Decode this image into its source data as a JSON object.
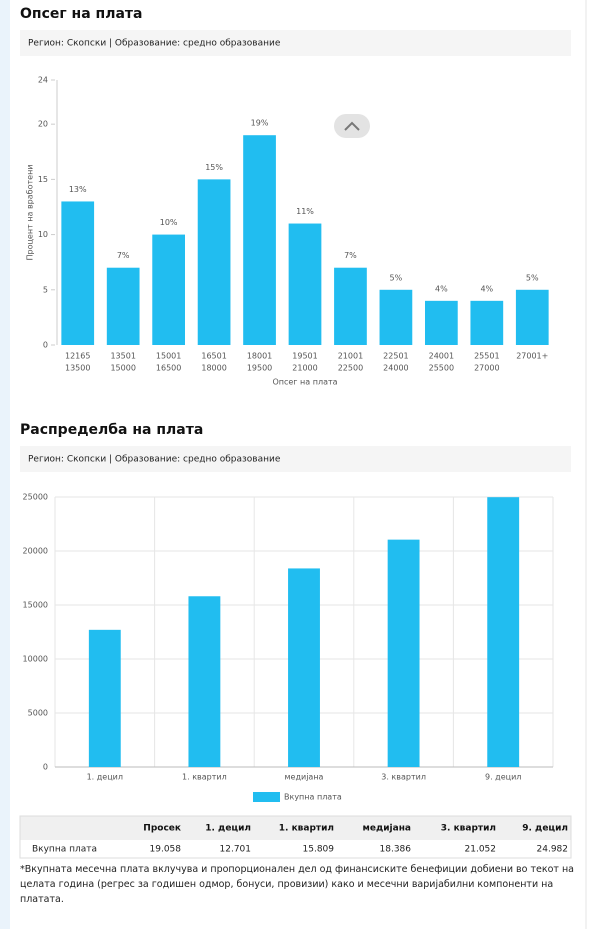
{
  "chart_data": [
    {
      "type": "bar",
      "title": "Опсег на плата",
      "subtitle": "Регион: Скопски | Образование: средно образование",
      "categories": [
        [
          "12165",
          "13500"
        ],
        [
          "13501",
          "15000"
        ],
        [
          "15001",
          "16500"
        ],
        [
          "16501",
          "18000"
        ],
        [
          "18001",
          "19500"
        ],
        [
          "19501",
          "21000"
        ],
        [
          "21001",
          "22500"
        ],
        [
          "22501",
          "24000"
        ],
        [
          "24001",
          "25500"
        ],
        [
          "25501",
          "27000"
        ],
        [
          "27001+"
        ]
      ],
      "values": [
        13,
        7,
        10,
        15,
        19,
        11,
        7,
        5,
        4,
        4,
        5
      ],
      "value_labels": [
        "13%",
        "7%",
        "10%",
        "15%",
        "19%",
        "11%",
        "7%",
        "5%",
        "4%",
        "4%",
        "5%"
      ],
      "color": "#21bdf0",
      "xlabel": "Опсег на плата",
      "ylabel": "Процент на вработени",
      "ylim": [
        0,
        24
      ],
      "yticks": [
        0,
        5,
        10,
        15,
        20,
        24
      ],
      "grid": false
    },
    {
      "type": "bar",
      "title": "Распределба на плата",
      "subtitle": "Регион: Скопски | Образование: средно образование",
      "categories": [
        "1. децил",
        "1. квартил",
        "медијана",
        "3. квартил",
        "9. децил"
      ],
      "series": [
        {
          "name": "Вкупна плата",
          "color": "#21bdf0",
          "values": [
            12701,
            15809,
            18386,
            21052,
            24982
          ]
        }
      ],
      "ylim": [
        0,
        25000
      ],
      "yticks": [
        0,
        5000,
        10000,
        15000,
        20000,
        25000
      ],
      "grid": true,
      "legend": "bottom"
    }
  ],
  "table": {
    "header": [
      "Просек",
      "1. децил",
      "1. квартил",
      "медијана",
      "3. квартил",
      "9. децил"
    ],
    "rows": [
      [
        "Вкупна плата",
        "19.058",
        "12.701",
        "15.809",
        "18.386",
        "21.052",
        "24.982"
      ]
    ]
  },
  "footnote": "*Вкупната месечна плата вклучува и пропорционален дел од финансиските бенефиции добиени во текот на целата година (регрес за годишен одмор, бонуси, провизии) како и месечни варијабилни компоненти на платата."
}
